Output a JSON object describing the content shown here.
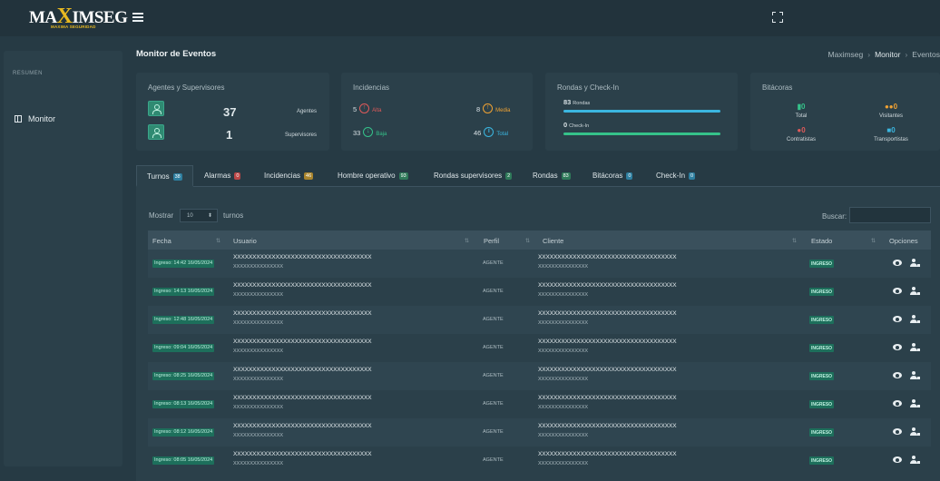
{
  "brand": {
    "logo_text_pre": "MA",
    "logo_text_x": "X",
    "logo_text_post": "IMSEG",
    "logo_tagline": "MAXIMA SEGURIDAD"
  },
  "sidebar": {
    "heading": "RESUMEN",
    "items": [
      {
        "label": "Monitor",
        "icon": "grid-icon"
      }
    ]
  },
  "page": {
    "title": "Monitor de Eventos"
  },
  "breadcrumb": [
    "Maximseg",
    "Monitor",
    "Eventos"
  ],
  "cards": {
    "agentes": {
      "title": "Agentes y Supervisores",
      "agentes_value": "37",
      "agentes_label": "Agentes",
      "supervisores_value": "1",
      "supervisores_label": "Supervisores"
    },
    "incidencias": {
      "title": "Incidencias",
      "alta": {
        "value": "5",
        "label": "Alta",
        "color": "#e05a5a"
      },
      "media": {
        "value": "8",
        "label": "Media",
        "color": "#f0a233"
      },
      "baja": {
        "value": "33",
        "label": "Baja",
        "color": "#35c28a"
      },
      "total": {
        "value": "46",
        "label": "Total",
        "color": "#3bb6e0"
      }
    },
    "rondas": {
      "title": "Rondas y Check-In",
      "rondas_value": "83",
      "rondas_label": "Rondas",
      "rondas_bar_fraction": 1.0,
      "checkin_value": "0",
      "checkin_label": "Check-In",
      "checkin_bar_fraction": 1.0
    },
    "bitacoras": {
      "title": "Bitácoras",
      "total": {
        "value": "0",
        "label": "Total",
        "color": "#35c28a"
      },
      "visitantes": {
        "value": "0",
        "label": "Visitantes",
        "color": "#f0a233"
      },
      "contratistas": {
        "value": "0",
        "label": "Contratistas",
        "color": "#e05a5a"
      },
      "transportistas": {
        "value": "0",
        "label": "Transportistas",
        "color": "#3bb6e0"
      }
    }
  },
  "tabs": [
    {
      "label": "Turnos",
      "count": "38",
      "badge_color": "#2e7fa0"
    },
    {
      "label": "Alarmas",
      "count": "0",
      "badge_color": "#b94646"
    },
    {
      "label": "Incidencias",
      "count": "46",
      "badge_color": "#a8842c"
    },
    {
      "label": "Hombre operativo",
      "count": "93",
      "badge_color": "#2f7a5a"
    },
    {
      "label": "Rondas supervisores",
      "count": "2",
      "badge_color": "#2f7a5a"
    },
    {
      "label": "Rondas",
      "count": "83",
      "badge_color": "#2f7a5a"
    },
    {
      "label": "Bitácoras",
      "count": "0",
      "badge_color": "#2e7fa0"
    },
    {
      "label": "Check-In",
      "count": "0",
      "badge_color": "#2e7fa0"
    }
  ],
  "table_controls": {
    "mostrar": "Mostrar",
    "page_size": "10",
    "suffix": "turnos",
    "buscar": "Buscar:"
  },
  "columns": [
    "Fecha",
    "Usuario",
    "Perfil",
    "Cliente",
    "Estado",
    "Opciones"
  ],
  "rows": [
    {
      "fecha": "Ingreso: 14:42 16/05/2024",
      "usuario": "XXXXXXXXXXXXXXXXXXXXXXXXXXXXXXXXXXXX",
      "usuario_sub": "XXXXXXXXXXXXXXX",
      "perfil": "AGENTE",
      "cliente": "XXXXXXXXXXXXXXXXXXXXXXXXXXXXXXXXXXXX",
      "cliente_sub": "XXXXXXXXXXXXXXX",
      "estado": "INGRESO"
    },
    {
      "fecha": "Ingreso: 14:13 16/05/2024",
      "usuario": "XXXXXXXXXXXXXXXXXXXXXXXXXXXXXXXXXXXX",
      "usuario_sub": "XXXXXXXXXXXXXXX",
      "perfil": "AGENTE",
      "cliente": "XXXXXXXXXXXXXXXXXXXXXXXXXXXXXXXXXXXX",
      "cliente_sub": "XXXXXXXXXXXXXXX",
      "estado": "INGRESO"
    },
    {
      "fecha": "Ingreso: 12:48 16/05/2024",
      "usuario": "XXXXXXXXXXXXXXXXXXXXXXXXXXXXXXXXXXXX",
      "usuario_sub": "XXXXXXXXXXXXXXX",
      "perfil": "AGENTE",
      "cliente": "XXXXXXXXXXXXXXXXXXXXXXXXXXXXXXXXXXXX",
      "cliente_sub": "XXXXXXXXXXXXXXX",
      "estado": "INGRESO"
    },
    {
      "fecha": "Ingreso: 09:04 16/05/2024",
      "usuario": "XXXXXXXXXXXXXXXXXXXXXXXXXXXXXXXXXXXX",
      "usuario_sub": "XXXXXXXXXXXXXXX",
      "perfil": "AGENTE",
      "cliente": "XXXXXXXXXXXXXXXXXXXXXXXXXXXXXXXXXXXX",
      "cliente_sub": "XXXXXXXXXXXXXXX",
      "estado": "INGRESO"
    },
    {
      "fecha": "Ingreso: 08:25 16/05/2024",
      "usuario": "XXXXXXXXXXXXXXXXXXXXXXXXXXXXXXXXXXXX",
      "usuario_sub": "XXXXXXXXXXXXXXX",
      "perfil": "AGENTE",
      "cliente": "XXXXXXXXXXXXXXXXXXXXXXXXXXXXXXXXXXXX",
      "cliente_sub": "XXXXXXXXXXXXXXX",
      "estado": "INGRESO"
    },
    {
      "fecha": "Ingreso: 08:13 16/05/2024",
      "usuario": "XXXXXXXXXXXXXXXXXXXXXXXXXXXXXXXXXXXX",
      "usuario_sub": "XXXXXXXXXXXXXXX",
      "perfil": "AGENTE",
      "cliente": "XXXXXXXXXXXXXXXXXXXXXXXXXXXXXXXXXXXX",
      "cliente_sub": "XXXXXXXXXXXXXXX",
      "estado": "INGRESO"
    },
    {
      "fecha": "Ingreso: 08:12 16/05/2024",
      "usuario": "XXXXXXXXXXXXXXXXXXXXXXXXXXXXXXXXXXXX",
      "usuario_sub": "XXXXXXXXXXXXXXX",
      "perfil": "AGENTE",
      "cliente": "XXXXXXXXXXXXXXXXXXXXXXXXXXXXXXXXXXXX",
      "cliente_sub": "XXXXXXXXXXXXXXX",
      "estado": "INGRESO"
    },
    {
      "fecha": "Ingreso: 08:05 16/05/2024",
      "usuario": "XXXXXXXXXXXXXXXXXXXXXXXXXXXXXXXXXXXX",
      "usuario_sub": "XXXXXXXXXXXXXXX",
      "perfil": "AGENTE",
      "cliente": "XXXXXXXXXXXXXXXXXXXXXXXXXXXXXXXXXXXX",
      "cliente_sub": "XXXXXXXXXXXXXXX",
      "estado": "INGRESO"
    }
  ]
}
